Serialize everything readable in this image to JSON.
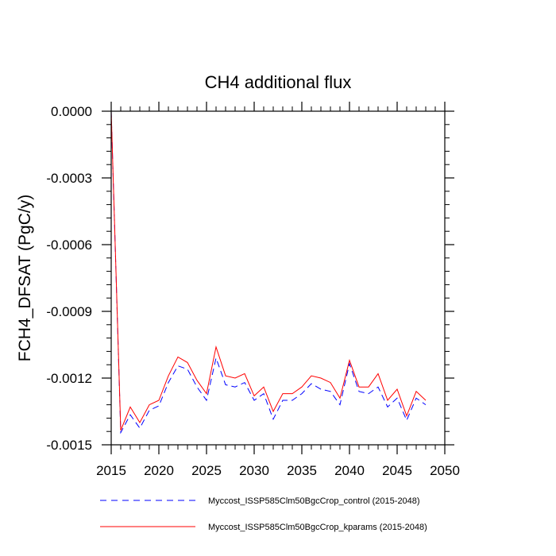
{
  "chart_data": {
    "type": "line",
    "title": "CH4 additional flux",
    "xlabel": "",
    "ylabel": "FCH4_DFSAT  (PgC/y)",
    "xlim": [
      2015,
      2050
    ],
    "ylim": [
      -0.0015,
      0.0
    ],
    "xticks": [
      2015,
      2020,
      2025,
      2030,
      2035,
      2040,
      2045,
      2050
    ],
    "xtick_labels": [
      "2015",
      "2020",
      "2025",
      "2030",
      "2035",
      "2040",
      "2045",
      "2050"
    ],
    "yticks": [
      0.0,
      -0.0003,
      -0.0006,
      -0.0009,
      -0.0012,
      -0.0015
    ],
    "ytick_labels": [
      "0.0000",
      "-0.0003",
      "-0.0006",
      "-0.0009",
      "-0.0012",
      "-0.0015"
    ],
    "x": [
      2015,
      2016,
      2017,
      2018,
      2019,
      2020,
      2021,
      2022,
      2023,
      2024,
      2025,
      2026,
      2027,
      2028,
      2029,
      2030,
      2031,
      2032,
      2033,
      2034,
      2035,
      2036,
      2037,
      2038,
      2039,
      2040,
      2041,
      2042,
      2043,
      2044,
      2045,
      2046,
      2047,
      2048
    ],
    "series": [
      {
        "name": "Myccost_ISSP585Clm50BgcCrop_control (2015-2048)",
        "color": "#0000ff",
        "style": "dashed",
        "values": [
          0.0,
          -0.001445,
          -0.001365,
          -0.001425,
          -0.001345,
          -0.001325,
          -0.00122,
          -0.001145,
          -0.00116,
          -0.00124,
          -0.0013,
          -0.00111,
          -0.00123,
          -0.00124,
          -0.00122,
          -0.0013,
          -0.00127,
          -0.001385,
          -0.0013,
          -0.0013,
          -0.00127,
          -0.001225,
          -0.00125,
          -0.00126,
          -0.00132,
          -0.001135,
          -0.00126,
          -0.00127,
          -0.00124,
          -0.00133,
          -0.00129,
          -0.00139,
          -0.00129,
          -0.00132
        ]
      },
      {
        "name": "Myccost_ISSP585Clm50BgcCrop_kparams (2015-2048)",
        "color": "#ff0000",
        "style": "solid",
        "values": [
          0.0,
          -0.001435,
          -0.00133,
          -0.0014,
          -0.00132,
          -0.0013,
          -0.00119,
          -0.001105,
          -0.00113,
          -0.00121,
          -0.00127,
          -0.00106,
          -0.00119,
          -0.0012,
          -0.00118,
          -0.00128,
          -0.00124,
          -0.00135,
          -0.00127,
          -0.00127,
          -0.00124,
          -0.00119,
          -0.0012,
          -0.00122,
          -0.00129,
          -0.00112,
          -0.00124,
          -0.00124,
          -0.00118,
          -0.0013,
          -0.00125,
          -0.00137,
          -0.00126,
          -0.0013
        ]
      }
    ],
    "legend_position": "bottom",
    "grid": false
  }
}
